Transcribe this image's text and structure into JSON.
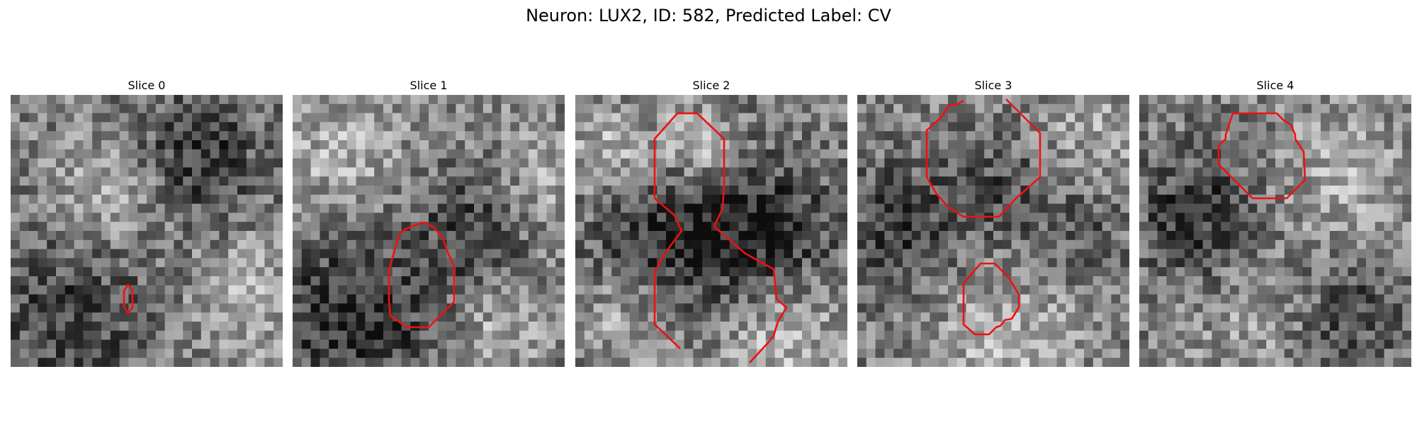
{
  "figure": {
    "title": "Neuron: LUX2, ID: 582, Predicted Label: CV"
  },
  "panels": [
    {
      "title": "Slice 0"
    },
    {
      "title": "Slice 1"
    },
    {
      "title": "Slice 2"
    },
    {
      "title": "Slice 3"
    },
    {
      "title": "Slice 4"
    }
  ],
  "colors": {
    "contour": "#ee1111",
    "background": "#ffffff"
  }
}
